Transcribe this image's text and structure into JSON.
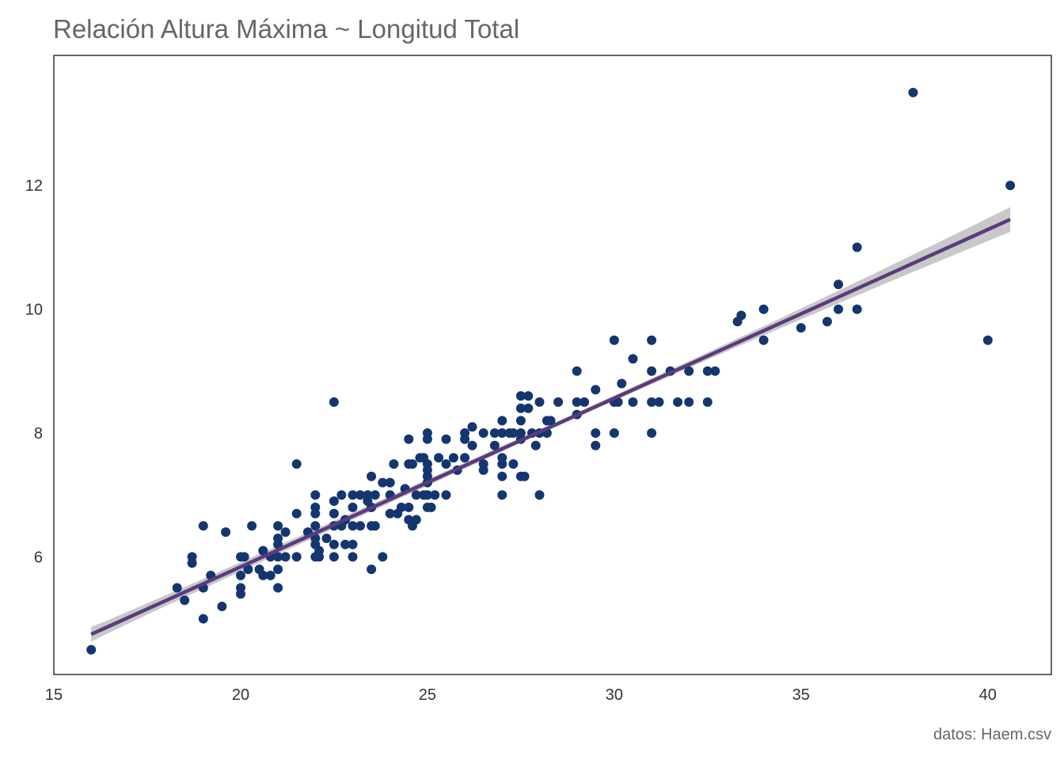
{
  "chart_data": {
    "type": "scatter",
    "title": "Relación Altura Máxima ~ Longitud Total",
    "caption": "datos: Haem.csv",
    "xlabel": "",
    "ylabel": "",
    "xlim": [
      15,
      41.7
    ],
    "ylim": [
      4.1,
      14.1
    ],
    "x_ticks": [
      15,
      20,
      25,
      30,
      35,
      40
    ],
    "y_ticks": [
      6,
      8,
      10,
      12
    ],
    "grid": false,
    "legend": "none",
    "colors": {
      "points": "#143670",
      "fit_line": "#5b3a7e",
      "confidence_band": "#c8c8c8",
      "panel_border": "#333333"
    },
    "series": [
      {
        "values": [
          [
            16.0,
            4.5
          ],
          [
            18.3,
            5.5
          ],
          [
            18.5,
            5.3
          ],
          [
            18.7,
            6.0
          ],
          [
            18.7,
            5.9
          ],
          [
            19.0,
            6.5
          ],
          [
            19.0,
            5.0
          ],
          [
            19.0,
            5.5
          ],
          [
            19.2,
            5.7
          ],
          [
            19.5,
            5.2
          ],
          [
            19.6,
            6.4
          ],
          [
            20.0,
            6.0
          ],
          [
            20.0,
            5.7
          ],
          [
            20.0,
            5.5
          ],
          [
            20.0,
            5.4
          ],
          [
            20.1,
            6.0
          ],
          [
            20.2,
            5.8
          ],
          [
            20.3,
            6.5
          ],
          [
            20.5,
            5.8
          ],
          [
            20.6,
            6.1
          ],
          [
            20.6,
            5.7
          ],
          [
            20.8,
            6.0
          ],
          [
            20.8,
            5.7
          ],
          [
            21.0,
            6.5
          ],
          [
            21.0,
            6.3
          ],
          [
            21.0,
            6.2
          ],
          [
            21.0,
            6.0
          ],
          [
            21.0,
            5.8
          ],
          [
            21.0,
            5.5
          ],
          [
            21.2,
            6.4
          ],
          [
            21.2,
            6.0
          ],
          [
            21.5,
            7.5
          ],
          [
            21.5,
            6.7
          ],
          [
            21.5,
            6.0
          ],
          [
            21.8,
            6.4
          ],
          [
            22.0,
            7.0
          ],
          [
            22.0,
            6.8
          ],
          [
            22.0,
            6.7
          ],
          [
            22.0,
            6.5
          ],
          [
            22.0,
            6.3
          ],
          [
            22.0,
            6.2
          ],
          [
            22.0,
            6.0
          ],
          [
            22.1,
            6.1
          ],
          [
            22.1,
            6.0
          ],
          [
            22.3,
            6.3
          ],
          [
            22.5,
            8.5
          ],
          [
            22.5,
            6.9
          ],
          [
            22.5,
            6.7
          ],
          [
            22.5,
            6.5
          ],
          [
            22.5,
            6.2
          ],
          [
            22.5,
            6.0
          ],
          [
            22.7,
            7.0
          ],
          [
            22.7,
            6.5
          ],
          [
            22.8,
            6.6
          ],
          [
            22.8,
            6.2
          ],
          [
            23.0,
            7.0
          ],
          [
            23.0,
            6.8
          ],
          [
            23.0,
            6.5
          ],
          [
            23.0,
            6.2
          ],
          [
            23.0,
            6.0
          ],
          [
            23.2,
            7.0
          ],
          [
            23.2,
            6.5
          ],
          [
            23.4,
            7.0
          ],
          [
            23.4,
            6.9
          ],
          [
            23.5,
            7.3
          ],
          [
            23.5,
            6.8
          ],
          [
            23.5,
            6.5
          ],
          [
            23.5,
            5.8
          ],
          [
            23.6,
            7.0
          ],
          [
            23.6,
            6.5
          ],
          [
            23.8,
            7.2
          ],
          [
            23.8,
            6.0
          ],
          [
            24.0,
            7.2
          ],
          [
            24.0,
            7.0
          ],
          [
            24.0,
            6.7
          ],
          [
            24.1,
            7.5
          ],
          [
            24.2,
            6.7
          ],
          [
            24.3,
            6.8
          ],
          [
            24.4,
            7.1
          ],
          [
            24.5,
            7.9
          ],
          [
            24.5,
            7.5
          ],
          [
            24.5,
            6.8
          ],
          [
            24.5,
            6.6
          ],
          [
            24.6,
            7.5
          ],
          [
            24.6,
            6.5
          ],
          [
            24.7,
            7.0
          ],
          [
            24.7,
            6.6
          ],
          [
            24.8,
            7.6
          ],
          [
            24.9,
            7.6
          ],
          [
            24.9,
            7.0
          ],
          [
            25.0,
            8.0
          ],
          [
            25.0,
            7.9
          ],
          [
            25.0,
            7.5
          ],
          [
            25.0,
            7.4
          ],
          [
            25.0,
            7.3
          ],
          [
            25.0,
            7.2
          ],
          [
            25.0,
            7.0
          ],
          [
            25.0,
            6.8
          ],
          [
            25.1,
            6.8
          ],
          [
            25.2,
            7.0
          ],
          [
            25.3,
            7.6
          ],
          [
            25.5,
            7.9
          ],
          [
            25.5,
            7.5
          ],
          [
            25.5,
            7.0
          ],
          [
            25.7,
            7.6
          ],
          [
            25.8,
            7.4
          ],
          [
            26.0,
            8.0
          ],
          [
            26.0,
            7.9
          ],
          [
            26.0,
            7.6
          ],
          [
            26.2,
            8.1
          ],
          [
            26.2,
            7.8
          ],
          [
            26.5,
            8.0
          ],
          [
            26.5,
            7.5
          ],
          [
            26.5,
            7.4
          ],
          [
            26.8,
            8.0
          ],
          [
            26.8,
            7.8
          ],
          [
            27.0,
            8.2
          ],
          [
            27.0,
            8.0
          ],
          [
            27.0,
            7.6
          ],
          [
            27.0,
            7.5
          ],
          [
            27.0,
            7.3
          ],
          [
            27.0,
            7.0
          ],
          [
            27.2,
            8.0
          ],
          [
            27.3,
            8.0
          ],
          [
            27.3,
            7.5
          ],
          [
            27.5,
            8.6
          ],
          [
            27.5,
            8.4
          ],
          [
            27.5,
            8.2
          ],
          [
            27.5,
            8.0
          ],
          [
            27.5,
            7.9
          ],
          [
            27.5,
            7.3
          ],
          [
            27.6,
            7.3
          ],
          [
            27.7,
            8.6
          ],
          [
            27.7,
            8.4
          ],
          [
            27.8,
            8.0
          ],
          [
            27.9,
            7.8
          ],
          [
            28.0,
            8.5
          ],
          [
            28.0,
            8.0
          ],
          [
            28.0,
            7.0
          ],
          [
            28.2,
            8.2
          ],
          [
            28.2,
            8.0
          ],
          [
            28.3,
            8.2
          ],
          [
            28.5,
            8.5
          ],
          [
            29.0,
            9.0
          ],
          [
            29.0,
            8.5
          ],
          [
            29.0,
            8.3
          ],
          [
            29.2,
            8.5
          ],
          [
            29.5,
            8.7
          ],
          [
            29.5,
            8.0
          ],
          [
            29.5,
            7.8
          ],
          [
            30.0,
            9.5
          ],
          [
            30.0,
            8.5
          ],
          [
            30.0,
            8.0
          ],
          [
            30.1,
            8.5
          ],
          [
            30.2,
            8.8
          ],
          [
            30.5,
            9.2
          ],
          [
            30.5,
            8.5
          ],
          [
            31.0,
            9.5
          ],
          [
            31.0,
            9.0
          ],
          [
            31.0,
            8.5
          ],
          [
            31.0,
            8.0
          ],
          [
            31.2,
            8.5
          ],
          [
            31.5,
            9.0
          ],
          [
            31.7,
            8.5
          ],
          [
            32.0,
            9.0
          ],
          [
            32.0,
            8.5
          ],
          [
            32.5,
            9.0
          ],
          [
            32.5,
            8.5
          ],
          [
            32.7,
            9.0
          ],
          [
            33.3,
            9.8
          ],
          [
            33.4,
            9.9
          ],
          [
            34.0,
            10.0
          ],
          [
            34.0,
            9.5
          ],
          [
            35.0,
            9.7
          ],
          [
            35.7,
            9.8
          ],
          [
            36.0,
            10.4
          ],
          [
            36.0,
            10.0
          ],
          [
            36.5,
            11.0
          ],
          [
            36.5,
            10.0
          ],
          [
            38.0,
            13.5
          ],
          [
            40.0,
            9.5
          ],
          [
            40.6,
            12.0
          ]
        ]
      }
    ],
    "fit": {
      "type": "linear",
      "x_range": [
        16.0,
        40.6
      ],
      "y_start": 4.75,
      "y_end": 11.45,
      "band_halfwidth_start": 0.12,
      "band_halfwidth_mid": 0.04,
      "band_halfwidth_end": 0.2
    }
  }
}
